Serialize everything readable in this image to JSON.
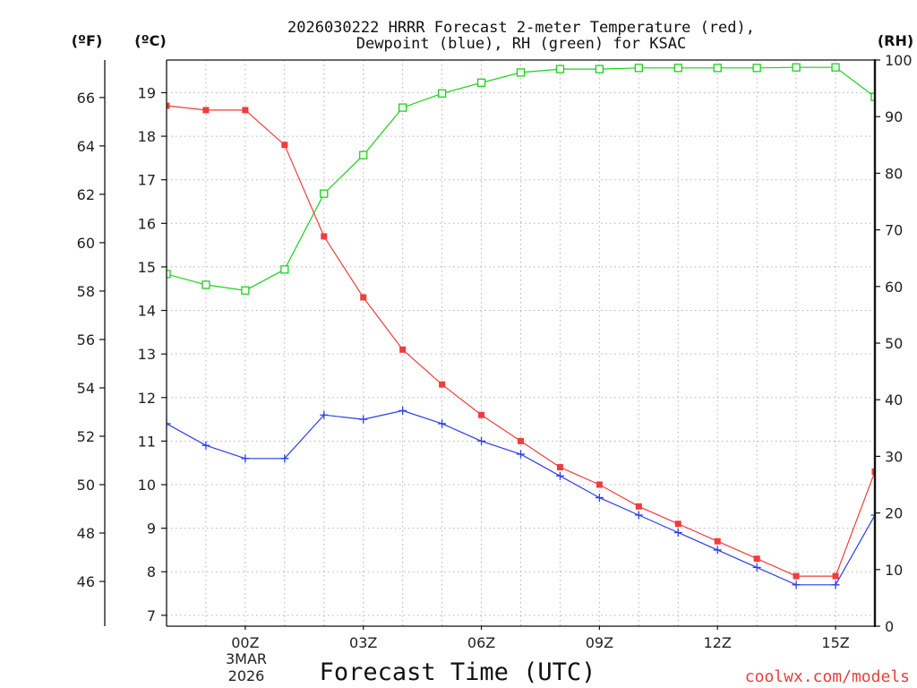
{
  "chart_data": {
    "type": "line",
    "title": [
      "2026030222 HRRR Forecast 2-meter Temperature (red),",
      "Dewpoint (blue), RH (green) for KSAC"
    ],
    "xlabel": "Forecast Time (UTC)",
    "x_hours": [
      -2,
      -1,
      0,
      1,
      2,
      3,
      4,
      5,
      6,
      7,
      8,
      9,
      10,
      11,
      12,
      13,
      14,
      15,
      16
    ],
    "xlim": [
      -2,
      16
    ],
    "x_ticks": [
      0,
      3,
      6,
      9,
      12,
      15
    ],
    "x_tick_labels": [
      "00Z",
      "03Z",
      "06Z",
      "09Z",
      "12Z",
      "15Z"
    ],
    "date_label": [
      "3MAR",
      "2026"
    ],
    "grid": true,
    "grid_color": "#b4b4b4",
    "axis_f": {
      "label": "(ºF)",
      "ticks": [
        46,
        48,
        50,
        52,
        54,
        56,
        58,
        60,
        62,
        64,
        66
      ]
    },
    "axis_c": {
      "label": "(ºC)",
      "range": [
        6.75,
        19.75
      ],
      "ticks": [
        7,
        8,
        9,
        10,
        11,
        12,
        13,
        14,
        15,
        16,
        17,
        18,
        19
      ],
      "series": {
        "temperature": {
          "color": "#f03c3c",
          "marker": "filled-square",
          "values": [
            18.7,
            18.6,
            18.6,
            17.8,
            15.7,
            14.3,
            13.1,
            12.3,
            11.6,
            11.0,
            10.4,
            10.0,
            9.5,
            9.1,
            8.7,
            8.3,
            7.9,
            7.9,
            10.3
          ]
        },
        "dewpoint": {
          "color": "#2a3ee8",
          "marker": "plus",
          "values": [
            11.4,
            10.9,
            10.6,
            10.6,
            11.6,
            11.5,
            11.7,
            11.4,
            11.0,
            10.7,
            10.2,
            9.7,
            9.3,
            8.9,
            8.5,
            8.1,
            7.7,
            7.7,
            9.3
          ]
        }
      }
    },
    "axis_rh": {
      "label": "(RH)",
      "range": [
        0,
        100
      ],
      "ticks": [
        0,
        10,
        20,
        30,
        40,
        50,
        60,
        70,
        80,
        90,
        100
      ],
      "series": {
        "rh": {
          "color": "#19d219",
          "marker": "open-square",
          "values": [
            62.2,
            60.3,
            59.3,
            63.0,
            76.4,
            83.2,
            91.6,
            94.1,
            96.0,
            97.8,
            98.4,
            98.4,
            98.6,
            98.6,
            98.6,
            98.6,
            98.7,
            98.7,
            93.5
          ]
        }
      }
    }
  },
  "credit": {
    "text": "coolwx.com/models",
    "color": "#e8403c"
  }
}
